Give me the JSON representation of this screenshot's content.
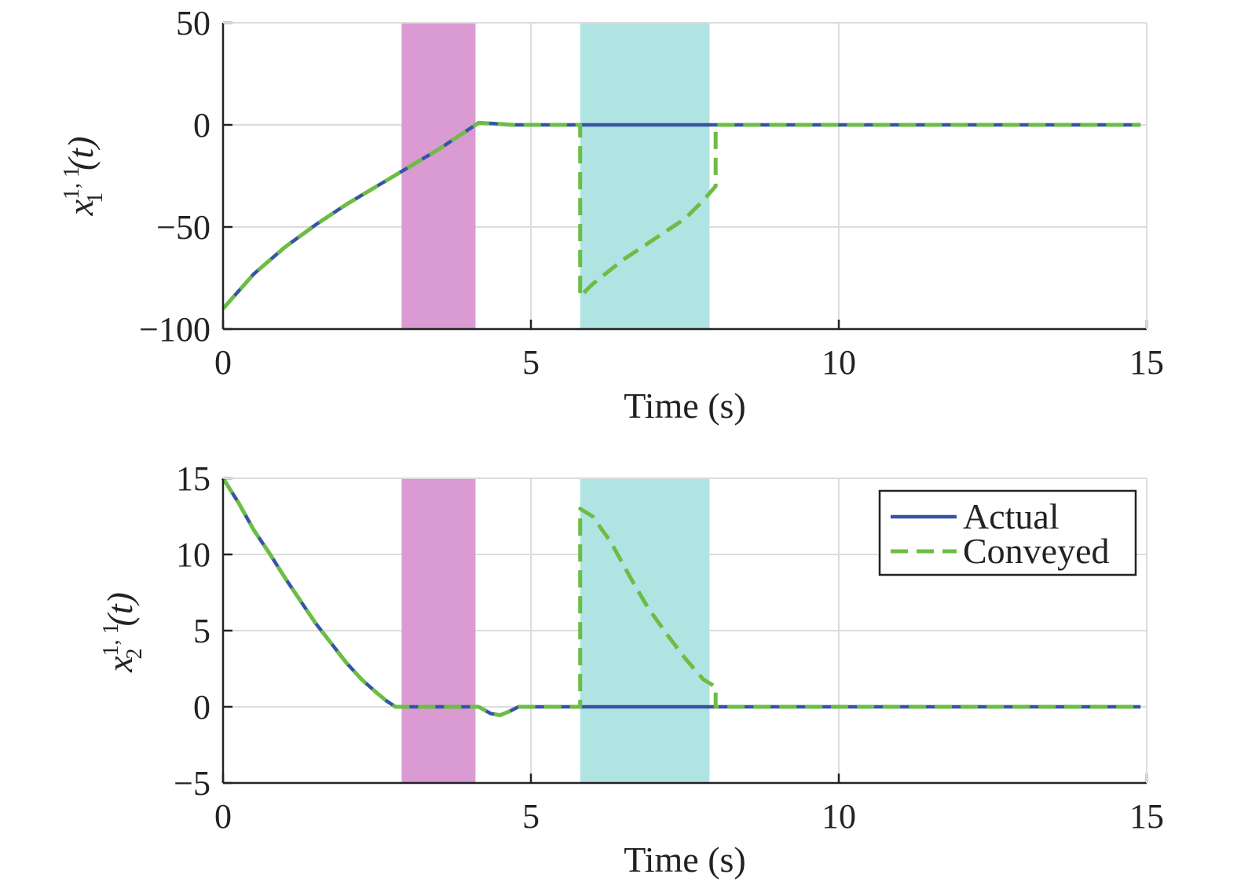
{
  "chart_data": [
    {
      "type": "line",
      "xlabel": "Time (s)",
      "ylabel": {
        "base": "x",
        "sub": "1",
        "sup": "1, 1",
        "arg": "(t)"
      },
      "xlim": [
        0,
        15
      ],
      "ylim": [
        -100,
        50
      ],
      "xticks": [
        0,
        5,
        10,
        15
      ],
      "yticks": [
        -100,
        -50,
        0,
        50
      ],
      "xtick_labels": [
        "0",
        "5",
        "10",
        "15"
      ],
      "ytick_labels": [
        "−100",
        "−50",
        "0",
        "50"
      ],
      "grid": true,
      "bands": [
        {
          "x0": 2.9,
          "x1": 4.1,
          "color": "#d99bd2"
        },
        {
          "x0": 5.8,
          "x1": 7.9,
          "color": "#b0e4e2"
        }
      ],
      "series": [
        {
          "name": "Actual",
          "color": "#3653a8",
          "style": "solid",
          "x": [
            0,
            0.5,
            1.0,
            1.5,
            2.0,
            2.5,
            3.0,
            3.5,
            4.0,
            4.15,
            4.4,
            4.7,
            5.0,
            6.0,
            8.0,
            10.0,
            12.0,
            14.9
          ],
          "y": [
            -90,
            -73,
            -60,
            -49,
            -39,
            -30,
            -21,
            -12,
            -2,
            1,
            0.6,
            0,
            0,
            0,
            0,
            0,
            0,
            0
          ]
        },
        {
          "name": "Conveyed",
          "color": "#6cbd45",
          "style": "dashed",
          "x": [
            0,
            0.5,
            1.0,
            1.5,
            2.0,
            2.5,
            3.0,
            3.5,
            4.0,
            4.15,
            4.4,
            4.7,
            5.0,
            5.8,
            5.8,
            6.0,
            6.5,
            7.0,
            7.5,
            7.8,
            8.0,
            8.0,
            8.5,
            10.0,
            12.0,
            14.9
          ],
          "y": [
            -90,
            -73,
            -60,
            -49,
            -39,
            -30,
            -21,
            -12,
            -2,
            1,
            0.6,
            0,
            0,
            0,
            -84,
            -78,
            -66,
            -56,
            -46,
            -37,
            -30,
            0,
            0,
            0,
            0,
            0
          ]
        }
      ]
    },
    {
      "type": "line",
      "xlabel": "Time (s)",
      "ylabel": {
        "base": "x",
        "sub": "2",
        "sup": "1, 1",
        "arg": "(t)"
      },
      "xlim": [
        0,
        15
      ],
      "ylim": [
        -5,
        15
      ],
      "xticks": [
        0,
        5,
        10,
        15
      ],
      "yticks": [
        -5,
        0,
        5,
        10,
        15
      ],
      "xtick_labels": [
        "0",
        "5",
        "10",
        "15"
      ],
      "ytick_labels": [
        "−5",
        "0",
        "5",
        "10",
        "15"
      ],
      "grid": true,
      "legend": {
        "position": "top-right",
        "entries": [
          "Actual",
          "Conveyed"
        ]
      },
      "bands": [
        {
          "x0": 2.9,
          "x1": 4.1,
          "color": "#d99bd2"
        },
        {
          "x0": 5.8,
          "x1": 7.9,
          "color": "#b0e4e2"
        }
      ],
      "series": [
        {
          "name": "Actual",
          "color": "#3653a8",
          "style": "solid",
          "x": [
            0,
            0.25,
            0.5,
            0.75,
            1.0,
            1.25,
            1.5,
            1.75,
            2.0,
            2.25,
            2.5,
            2.65,
            2.8,
            3.5,
            4.15,
            4.35,
            4.5,
            4.65,
            4.8,
            6.0,
            8.0,
            10.0,
            12.0,
            14.9
          ],
          "y": [
            15,
            13.4,
            11.6,
            10.1,
            8.5,
            7.0,
            5.5,
            4.2,
            2.9,
            1.8,
            0.9,
            0.4,
            0,
            0,
            0,
            -0.45,
            -0.55,
            -0.3,
            0,
            0,
            0,
            0,
            0,
            0
          ]
        },
        {
          "name": "Conveyed",
          "color": "#6cbd45",
          "style": "dashed",
          "x": [
            0,
            0.25,
            0.5,
            0.75,
            1.0,
            1.25,
            1.5,
            1.75,
            2.0,
            2.25,
            2.5,
            2.65,
            2.8,
            3.5,
            4.15,
            4.35,
            4.5,
            4.65,
            4.8,
            5.8,
            5.8,
            6.0,
            6.3,
            6.6,
            6.9,
            7.2,
            7.5,
            7.8,
            8.0,
            8.0,
            8.5,
            10.0,
            12.0,
            14.9
          ],
          "y": [
            15,
            13.4,
            11.6,
            10.1,
            8.5,
            7.0,
            5.5,
            4.2,
            2.9,
            1.8,
            0.9,
            0.4,
            0,
            0,
            0,
            -0.45,
            -0.55,
            -0.3,
            0,
            0,
            13,
            12.5,
            10.8,
            8.6,
            6.5,
            4.8,
            3.2,
            1.8,
            1.3,
            0,
            0,
            0,
            0,
            0
          ]
        }
      ]
    }
  ]
}
